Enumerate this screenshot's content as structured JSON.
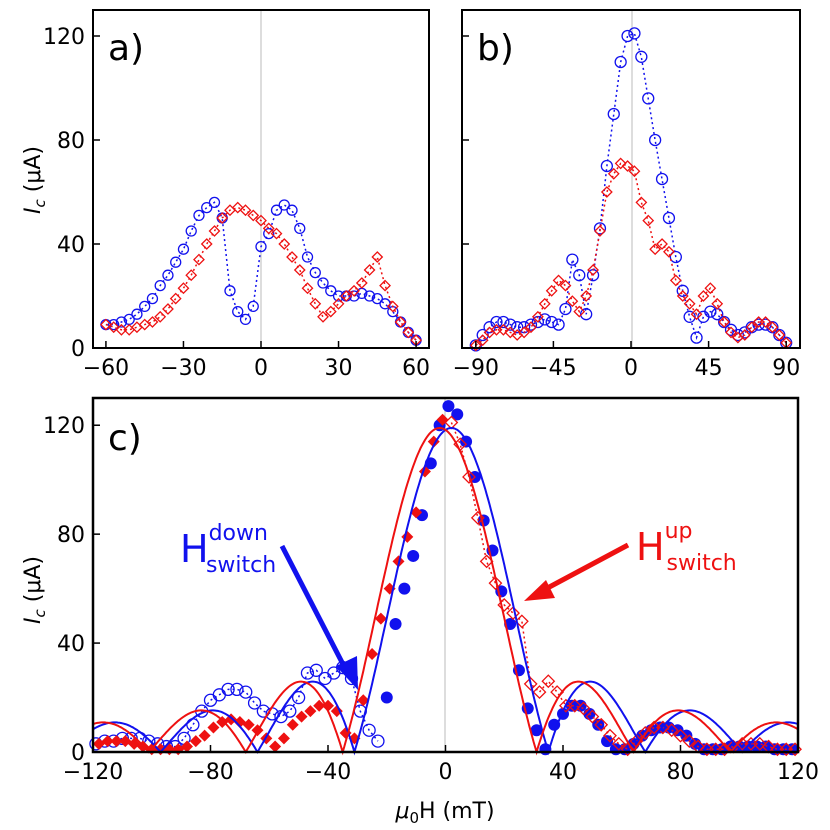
{
  "colors": {
    "blue": "#1111ee",
    "red": "#ee1111"
  },
  "chart_data": [
    {
      "type": "scatter",
      "panel_label": "a)",
      "ylabel_main": "I",
      "ylabel_sub": "c",
      "ylabel_unit": " (μA)",
      "xlim": [
        -65,
        65
      ],
      "ylim": [
        0,
        130
      ],
      "xticks": [
        -60,
        -30,
        0,
        30,
        60
      ],
      "xtick_labels": [
        "−60",
        "−30",
        "0",
        "30",
        "60"
      ],
      "yticks": [
        0,
        40,
        80,
        120
      ],
      "ytick_labels": [
        "0",
        "40",
        "80",
        "120"
      ],
      "series": [
        {
          "marker": "open-circle",
          "color": "blue",
          "line": "dotted",
          "x": [
            -60,
            -57,
            -54,
            -51,
            -48,
            -45,
            -42,
            -39,
            -36,
            -33,
            -30,
            -27,
            -24,
            -21,
            -18,
            -15,
            -12,
            -9,
            -6,
            -3,
            0,
            3,
            6,
            9,
            12,
            15,
            18,
            21,
            24,
            27,
            30,
            33,
            36,
            39,
            42,
            45,
            48,
            51,
            54,
            57,
            60
          ],
          "y": [
            9,
            9,
            10,
            11,
            13,
            16,
            19,
            24,
            28,
            33,
            38,
            45,
            51,
            54,
            56,
            50,
            22,
            14,
            11,
            16,
            39,
            44,
            53,
            55,
            53,
            46,
            35,
            29,
            25,
            22,
            20,
            20,
            20,
            21,
            20,
            19,
            17,
            14,
            10,
            6,
            3
          ]
        },
        {
          "marker": "open-diamond",
          "color": "red",
          "line": "dotted",
          "x": [
            -60,
            -57,
            -54,
            -51,
            -48,
            -45,
            -42,
            -39,
            -36,
            -33,
            -30,
            -27,
            -24,
            -21,
            -18,
            -15,
            -12,
            -9,
            -6,
            -3,
            0,
            3,
            6,
            9,
            12,
            15,
            18,
            21,
            24,
            27,
            30,
            33,
            36,
            39,
            42,
            45,
            48,
            51,
            54,
            57,
            60
          ],
          "y": [
            9,
            8,
            7,
            7,
            8,
            9,
            10,
            12,
            15,
            19,
            23,
            28,
            34,
            40,
            45,
            50,
            53,
            54,
            53,
            51,
            49,
            46,
            44,
            40,
            35,
            30,
            23,
            17,
            12,
            14,
            17,
            20,
            22,
            25,
            30,
            35,
            24,
            16,
            10,
            6,
            3
          ]
        }
      ]
    },
    {
      "type": "scatter",
      "panel_label": "b)",
      "xlim": [
        -98,
        98
      ],
      "ylim": [
        0,
        130
      ],
      "xticks": [
        -90,
        -45,
        0,
        45,
        90
      ],
      "xtick_labels": [
        "−90",
        "−45",
        "0",
        "45",
        "90"
      ],
      "yticks": [
        0,
        40,
        80,
        120
      ],
      "series": [
        {
          "marker": "open-circle",
          "color": "blue",
          "line": "dotted",
          "x": [
            -90,
            -86,
            -82,
            -78,
            -74,
            -70,
            -66,
            -62,
            -58,
            -54,
            -50,
            -46,
            -42,
            -38,
            -34,
            -30,
            -26,
            -22,
            -18,
            -14,
            -10,
            -6,
            -2,
            2,
            6,
            10,
            14,
            18,
            22,
            26,
            30,
            34,
            38,
            42,
            46,
            50,
            54,
            58,
            62,
            66,
            70,
            74,
            78,
            82,
            86,
            90
          ],
          "y": [
            1,
            5,
            8,
            10,
            10,
            9,
            8,
            8,
            9,
            10,
            11,
            10,
            9,
            15,
            34,
            28,
            13,
            28,
            46,
            70,
            90,
            110,
            120,
            121,
            112,
            96,
            80,
            65,
            50,
            35,
            22,
            12,
            4,
            12,
            14,
            13,
            10,
            7,
            5,
            6,
            8,
            9,
            9,
            8,
            5,
            2
          ]
        },
        {
          "marker": "open-diamond",
          "color": "red",
          "line": "dotted",
          "x": [
            -90,
            -86,
            -82,
            -78,
            -74,
            -70,
            -66,
            -62,
            -58,
            -54,
            -50,
            -46,
            -42,
            -38,
            -34,
            -30,
            -26,
            -22,
            -18,
            -14,
            -10,
            -6,
            -2,
            2,
            6,
            10,
            14,
            18,
            22,
            26,
            30,
            34,
            38,
            42,
            46,
            50,
            54,
            58,
            62,
            66,
            70,
            74,
            78,
            82,
            86,
            90
          ],
          "y": [
            1,
            3,
            6,
            7,
            7,
            6,
            5,
            6,
            8,
            12,
            17,
            22,
            26,
            24,
            18,
            14,
            20,
            30,
            45,
            60,
            67,
            71,
            70,
            68,
            56,
            49,
            38,
            40,
            37,
            26,
            20,
            17,
            13,
            20,
            23,
            17,
            10,
            6,
            4,
            5,
            8,
            10,
            10,
            8,
            5,
            2
          ]
        }
      ]
    },
    {
      "type": "scatter",
      "panel_label": "c)",
      "xlabel_mu": "μ",
      "xlabel_sub": "0",
      "xlabel_rest": "H (mT)",
      "xlim": [
        -120,
        120
      ],
      "ylim": [
        0,
        130
      ],
      "xticks": [
        -120,
        -80,
        -40,
        0,
        40,
        80,
        120
      ],
      "xtick_labels": [
        "−120",
        "−80",
        "−40",
        "0",
        "40",
        "80",
        "120"
      ],
      "yticks": [
        0,
        40,
        80,
        120
      ],
      "series": [
        {
          "marker": "open-circle",
          "color": "blue",
          "line": "dotted",
          "x": [
            -119,
            -116,
            -113,
            -110,
            -107,
            -104,
            -101,
            -98,
            -95,
            -92,
            -89,
            -86,
            -83,
            -80,
            -77,
            -74,
            -71,
            -68,
            -65,
            -62,
            -59,
            -56,
            -53,
            -50,
            -47,
            -44,
            -41,
            -38,
            -35,
            -32,
            -29,
            -26,
            -23
          ],
          "y": [
            3,
            4,
            4,
            5,
            5,
            5,
            4,
            3,
            2,
            2,
            5,
            10,
            15,
            19,
            21,
            23,
            23,
            22,
            18,
            15,
            14,
            13,
            15,
            20,
            29,
            30,
            27,
            29,
            31,
            27,
            15,
            8,
            4
          ]
        },
        {
          "marker": "filled-circle",
          "color": "blue",
          "line": "none",
          "x": [
            -20,
            -17,
            -14,
            -11,
            -8,
            -5,
            -2,
            1,
            4,
            7,
            10,
            13,
            16,
            19,
            22,
            25,
            28,
            31,
            34,
            37,
            40,
            43,
            46,
            49,
            52,
            55,
            58,
            61,
            64,
            67,
            70,
            73,
            76,
            79,
            82,
            85,
            88,
            91,
            94,
            97,
            100,
            103,
            106,
            109,
            112,
            115,
            118
          ],
          "y": [
            20,
            47,
            60,
            72,
            87,
            106,
            120,
            127,
            124,
            114,
            101,
            85,
            74,
            59,
            47,
            30,
            16,
            8,
            1,
            10,
            14,
            17,
            17,
            14,
            10,
            4,
            1,
            1,
            3,
            6,
            8,
            9,
            9,
            8,
            6,
            3,
            1,
            1,
            1,
            2,
            2,
            2,
            2,
            2,
            1,
            1,
            1
          ]
        },
        {
          "marker": "filled-diamond",
          "color": "red",
          "line": "none",
          "x": [
            -118,
            -115,
            -112,
            -109,
            -106,
            -103,
            -100,
            -97,
            -94,
            -91,
            -88,
            -85,
            -82,
            -79,
            -76,
            -73,
            -70,
            -67,
            -64,
            -61,
            -58,
            -55,
            -52,
            -49,
            -46,
            -43,
            -40,
            -37,
            -34,
            -31,
            -28,
            -25,
            -22,
            -19,
            -16,
            -13,
            -10,
            -7,
            -4,
            -1
          ],
          "y": [
            3,
            4,
            4,
            4,
            3,
            2,
            1,
            1,
            1,
            1,
            2,
            4,
            6,
            9,
            11,
            12,
            11,
            10,
            8,
            5,
            2,
            5,
            10,
            13,
            15,
            17,
            17,
            15,
            7,
            5,
            19,
            36,
            49,
            60,
            70,
            79,
            88,
            103,
            114,
            122
          ]
        },
        {
          "marker": "open-diamond",
          "color": "red",
          "line": "dotted",
          "x": [
            2,
            5,
            8,
            11,
            14,
            17,
            20,
            23,
            26,
            29,
            32,
            35,
            38,
            41,
            44,
            47,
            50,
            53,
            56,
            59,
            62,
            65,
            68,
            71,
            74,
            77,
            80,
            83,
            86,
            89,
            92,
            95,
            98,
            101,
            104,
            107,
            110,
            113,
            116,
            119
          ],
          "y": [
            121,
            113,
            101,
            86,
            70,
            62,
            54,
            51,
            48,
            25,
            22,
            26,
            22,
            17,
            17,
            16,
            13,
            10,
            6,
            3,
            1,
            4,
            7,
            9,
            9,
            8,
            6,
            4,
            2,
            1,
            1,
            1,
            2,
            3,
            3,
            3,
            2,
            1,
            1,
            1
          ]
        },
        {
          "marker": "none",
          "color": "blue",
          "line": "solid-fit",
          "fit_shift": 2,
          "x": [],
          "y": []
        },
        {
          "marker": "none",
          "color": "red",
          "line": "solid-fit",
          "fit_shift": -2,
          "x": [],
          "y": []
        }
      ],
      "annotations": {
        "down_main": "H",
        "down_sup": "down",
        "down_sub": "switch",
        "up_main": "H",
        "up_sup": "up",
        "up_sub": "switch"
      }
    }
  ]
}
